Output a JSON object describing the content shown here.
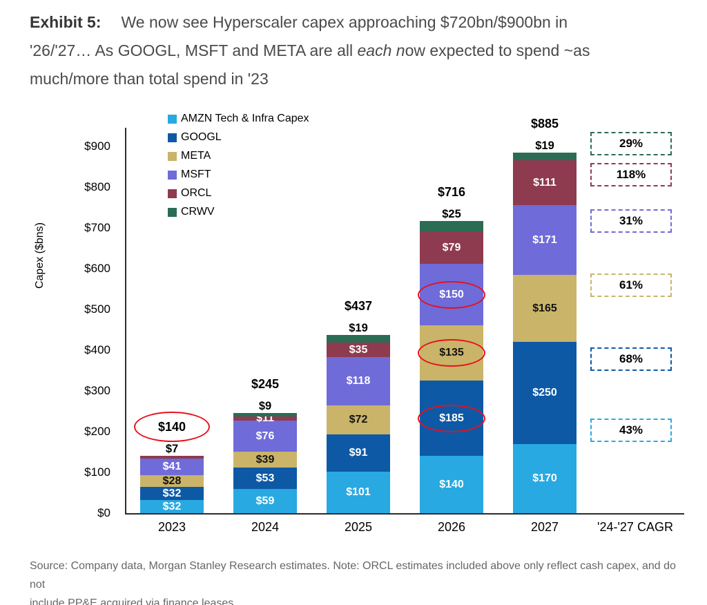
{
  "title": {
    "prefix": "Exhibit 5:",
    "line1": "We now see Hyperscaler capex approaching $720bn/$900bn in",
    "line2_pre": "'26/'27… As GOOGL, MSFT and META are all ",
    "line2_italic": "each n",
    "line2_post": "ow expected to spend ~as",
    "line3": "much/more than total spend in '23"
  },
  "source_note": {
    "line1": "Source: Company data, Morgan Stanley Research estimates. Note: ORCL estimates included above only reflect cash capex, and do not",
    "line2": "include PP&E acquired via finance leases"
  },
  "chart_data": {
    "type": "bar",
    "stacked": true,
    "y_axis_title": "Capex ($bns)",
    "ylim": [
      0,
      950
    ],
    "grid": false,
    "legend_position": "top-left",
    "annotation_color": "#e8101c",
    "y_ticks": [
      {
        "label": "$0",
        "value": 0
      },
      {
        "label": "$100",
        "value": 100
      },
      {
        "label": "$200",
        "value": 200
      },
      {
        "label": "$300",
        "value": 300
      },
      {
        "label": "$400",
        "value": 400
      },
      {
        "label": "$500",
        "value": 500
      },
      {
        "label": "$600",
        "value": 600
      },
      {
        "label": "$700",
        "value": 700
      },
      {
        "label": "$800",
        "value": 800
      },
      {
        "label": "$900",
        "value": 900
      }
    ],
    "series": [
      {
        "key": "AMZN",
        "label": "AMZN Tech & Infra Capex",
        "color": "#29A9E1"
      },
      {
        "key": "GOOGL",
        "label": "GOOGL",
        "color": "#0E59A6"
      },
      {
        "key": "META",
        "label": "META",
        "color": "#C9B469"
      },
      {
        "key": "MSFT",
        "label": "MSFT",
        "color": "#6F6BD9"
      },
      {
        "key": "ORCL",
        "label": "ORCL",
        "color": "#8E3A4F"
      },
      {
        "key": "CRWV",
        "label": "CRWV",
        "color": "#2B6C54"
      }
    ],
    "bars": [
      {
        "category": "2023",
        "total": 140,
        "total_label": "$140",
        "total_circled": true,
        "above_label": "$7",
        "segments": [
          {
            "series": "AMZN",
            "value": 32,
            "label": "$32",
            "label_tone": "light"
          },
          {
            "series": "GOOGL",
            "value": 32,
            "label": "$32",
            "label_tone": "light"
          },
          {
            "series": "META",
            "value": 28,
            "label": "$28",
            "label_tone": "dark"
          },
          {
            "series": "MSFT",
            "value": 41,
            "label": "$41",
            "label_tone": "light"
          },
          {
            "series": "ORCL",
            "value": 7
          }
        ]
      },
      {
        "category": "2024",
        "total": 245,
        "total_label": "$245",
        "total_circled": false,
        "above_label": "$9",
        "segments": [
          {
            "series": "AMZN",
            "value": 59,
            "label": "$59",
            "label_tone": "light"
          },
          {
            "series": "GOOGL",
            "value": 53,
            "label": "$53",
            "label_tone": "light"
          },
          {
            "series": "META",
            "value": 39,
            "label": "$39",
            "label_tone": "dark"
          },
          {
            "series": "MSFT",
            "value": 76,
            "label": "$76",
            "label_tone": "light"
          },
          {
            "series": "ORCL",
            "value": 11,
            "label": "$11",
            "label_tone": "light"
          },
          {
            "series": "CRWV",
            "value": 9
          }
        ]
      },
      {
        "category": "2025",
        "total": 437,
        "total_label": "$437",
        "total_circled": false,
        "above_label": "$19",
        "segments": [
          {
            "series": "AMZN",
            "value": 101,
            "label": "$101",
            "label_tone": "light"
          },
          {
            "series": "GOOGL",
            "value": 91,
            "label": "$91",
            "label_tone": "light"
          },
          {
            "series": "META",
            "value": 72,
            "label": "$72",
            "label_tone": "dark"
          },
          {
            "series": "MSFT",
            "value": 118,
            "label": "$118",
            "label_tone": "light"
          },
          {
            "series": "ORCL",
            "value": 35,
            "label": "$35",
            "label_tone": "light"
          },
          {
            "series": "CRWV",
            "value": 19
          }
        ]
      },
      {
        "category": "2026",
        "total": 716,
        "total_label": "$716",
        "total_circled": false,
        "above_label": "$25",
        "segments": [
          {
            "series": "AMZN",
            "value": 140,
            "label": "$140",
            "label_tone": "light"
          },
          {
            "series": "GOOGL",
            "value": 185,
            "label": "$185",
            "label_tone": "light",
            "circled": true
          },
          {
            "series": "META",
            "value": 135,
            "label": "$135",
            "label_tone": "dark",
            "circled": true
          },
          {
            "series": "MSFT",
            "value": 150,
            "label": "$150",
            "label_tone": "light",
            "circled": true
          },
          {
            "series": "ORCL",
            "value": 79,
            "label": "$79",
            "label_tone": "light"
          },
          {
            "series": "CRWV",
            "value": 25
          }
        ]
      },
      {
        "category": "2027",
        "total": 885,
        "total_label": "$885",
        "total_circled": false,
        "above_label": "$19",
        "segments": [
          {
            "series": "AMZN",
            "value": 170,
            "label": "$170",
            "label_tone": "light"
          },
          {
            "series": "GOOGL",
            "value": 250,
            "label": "$250",
            "label_tone": "light"
          },
          {
            "series": "META",
            "value": 165,
            "label": "$165",
            "label_tone": "dark"
          },
          {
            "series": "MSFT",
            "value": 171,
            "label": "$171",
            "label_tone": "light"
          },
          {
            "series": "ORCL",
            "value": 111,
            "label": "$111",
            "label_tone": "light"
          },
          {
            "series": "CRWV",
            "value": 19
          }
        ]
      }
    ],
    "cagr_column": {
      "category": "'24-'27 CAGR",
      "entries": [
        {
          "series": "CRWV",
          "label": "29%",
          "y_center": 208
        },
        {
          "series": "ORCL",
          "label": "118%",
          "y_center": 253
        },
        {
          "series": "MSFT",
          "label": "31%",
          "y_center": 320
        },
        {
          "series": "META",
          "label": "61%",
          "y_center": 413
        },
        {
          "series": "GOOGL",
          "label": "68%",
          "y_center": 520
        },
        {
          "series": "AMZN",
          "label": "43%",
          "y_center": 623
        }
      ]
    }
  }
}
